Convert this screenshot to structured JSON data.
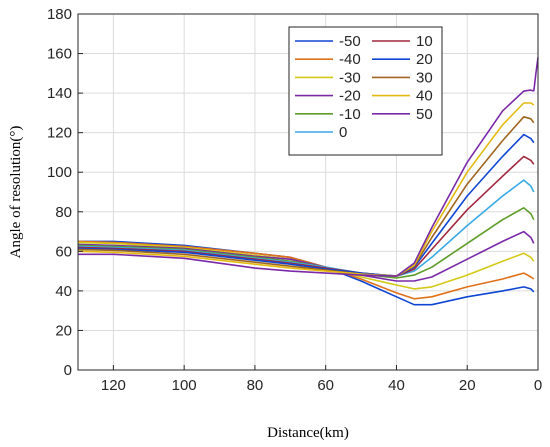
{
  "chart_data": {
    "type": "line",
    "title": "",
    "xlabel": "Distance(km)",
    "ylabel": "Angle of resolution(°)",
    "xlim": [
      130,
      0
    ],
    "ylim": [
      0,
      180
    ],
    "x_reversed": true,
    "xticks": [
      120,
      100,
      80,
      60,
      40,
      20,
      0
    ],
    "yticks": [
      0,
      20,
      40,
      60,
      80,
      100,
      120,
      140,
      160,
      180
    ],
    "grid": true,
    "legend_position": "top-right",
    "series": [
      {
        "name": "-50",
        "color": "#0e46d4",
        "points": [
          [
            130,
            65
          ],
          [
            120,
            65
          ],
          [
            100,
            63
          ],
          [
            80,
            59
          ],
          [
            70,
            57
          ],
          [
            60,
            52
          ],
          [
            50,
            45
          ],
          [
            40,
            37
          ],
          [
            35,
            33
          ],
          [
            30,
            33
          ],
          [
            20,
            37
          ],
          [
            10,
            40
          ],
          [
            4,
            42
          ],
          [
            2,
            41
          ],
          [
            1.2,
            39.5
          ]
        ]
      },
      {
        "name": "-40",
        "color": "#e0711a",
        "points": [
          [
            130,
            65
          ],
          [
            120,
            64.5
          ],
          [
            100,
            62.5
          ],
          [
            80,
            59
          ],
          [
            70,
            57
          ],
          [
            60,
            52
          ],
          [
            50,
            46
          ],
          [
            40,
            39
          ],
          [
            35,
            36
          ],
          [
            30,
            37
          ],
          [
            20,
            42
          ],
          [
            10,
            46
          ],
          [
            4,
            49
          ],
          [
            2,
            47
          ],
          [
            1.2,
            46
          ]
        ]
      },
      {
        "name": "-30",
        "color": "#d4c916",
        "points": [
          [
            130,
            64.5
          ],
          [
            120,
            64
          ],
          [
            100,
            62
          ],
          [
            80,
            58
          ],
          [
            70,
            56
          ],
          [
            60,
            52
          ],
          [
            50,
            47
          ],
          [
            40,
            43
          ],
          [
            35,
            41
          ],
          [
            30,
            42
          ],
          [
            20,
            48
          ],
          [
            10,
            55
          ],
          [
            4,
            59
          ],
          [
            2,
            57
          ],
          [
            1.2,
            55
          ]
        ]
      },
      {
        "name": "-20",
        "color": "#7a2aa8",
        "points": [
          [
            130,
            63.5
          ],
          [
            120,
            63
          ],
          [
            100,
            61.5
          ],
          [
            80,
            57.5
          ],
          [
            70,
            56
          ],
          [
            60,
            52
          ],
          [
            50,
            48
          ],
          [
            40,
            45
          ],
          [
            35,
            45
          ],
          [
            30,
            47
          ],
          [
            20,
            56
          ],
          [
            10,
            65
          ],
          [
            4,
            70
          ],
          [
            2,
            67
          ],
          [
            1.2,
            64
          ]
        ]
      },
      {
        "name": "-10",
        "color": "#5e9c28",
        "points": [
          [
            130,
            63
          ],
          [
            120,
            62.5
          ],
          [
            100,
            61
          ],
          [
            80,
            57
          ],
          [
            70,
            55
          ],
          [
            60,
            52
          ],
          [
            50,
            48.5
          ],
          [
            40,
            46.5
          ],
          [
            35,
            48
          ],
          [
            30,
            52
          ],
          [
            20,
            64
          ],
          [
            10,
            76
          ],
          [
            4,
            82
          ],
          [
            2,
            79
          ],
          [
            1.2,
            76
          ]
        ]
      },
      {
        "name": "0",
        "color": "#3aa9e6",
        "points": [
          [
            130,
            62.5
          ],
          [
            120,
            62
          ],
          [
            100,
            60.5
          ],
          [
            80,
            56.5
          ],
          [
            70,
            54.5
          ],
          [
            60,
            52
          ],
          [
            50,
            49
          ],
          [
            40,
            47.5
          ],
          [
            35,
            50
          ],
          [
            30,
            57
          ],
          [
            20,
            73
          ],
          [
            10,
            88
          ],
          [
            4,
            96
          ],
          [
            2,
            93
          ],
          [
            1.2,
            90
          ]
        ]
      },
      {
        "name": "10",
        "color": "#a2283f",
        "points": [
          [
            130,
            62
          ],
          [
            120,
            61.5
          ],
          [
            100,
            60
          ],
          [
            80,
            56
          ],
          [
            70,
            54
          ],
          [
            60,
            51.5
          ],
          [
            50,
            49
          ],
          [
            40,
            47.5
          ],
          [
            35,
            51
          ],
          [
            30,
            61
          ],
          [
            20,
            81
          ],
          [
            10,
            98
          ],
          [
            4,
            108
          ],
          [
            2,
            106
          ],
          [
            1.2,
            104
          ]
        ]
      },
      {
        "name": "20",
        "color": "#0e46d4",
        "points": [
          [
            130,
            61.5
          ],
          [
            120,
            61
          ],
          [
            100,
            59.5
          ],
          [
            80,
            55.5
          ],
          [
            70,
            53.5
          ],
          [
            60,
            51
          ],
          [
            50,
            49
          ],
          [
            40,
            47.5
          ],
          [
            35,
            52
          ],
          [
            30,
            64
          ],
          [
            20,
            88
          ],
          [
            10,
            108
          ],
          [
            4,
            119
          ],
          [
            2,
            117
          ],
          [
            1.2,
            115
          ]
        ]
      },
      {
        "name": "30",
        "color": "#a0651f",
        "points": [
          [
            130,
            61
          ],
          [
            120,
            60.5
          ],
          [
            100,
            58.5
          ],
          [
            80,
            54.5
          ],
          [
            70,
            52.5
          ],
          [
            60,
            50.5
          ],
          [
            50,
            48.5
          ],
          [
            40,
            47.5
          ],
          [
            35,
            52.5
          ],
          [
            30,
            67
          ],
          [
            20,
            94
          ],
          [
            10,
            116
          ],
          [
            4,
            128
          ],
          [
            2,
            127
          ],
          [
            1.2,
            125
          ]
        ]
      },
      {
        "name": "40",
        "color": "#e3ba12",
        "points": [
          [
            130,
            60
          ],
          [
            120,
            59.5
          ],
          [
            100,
            57.5
          ],
          [
            80,
            53.5
          ],
          [
            70,
            51.5
          ],
          [
            60,
            50
          ],
          [
            50,
            48.5
          ],
          [
            40,
            47.5
          ],
          [
            35,
            53
          ],
          [
            30,
            70
          ],
          [
            20,
            100
          ],
          [
            10,
            124
          ],
          [
            4,
            135
          ],
          [
            2,
            135
          ],
          [
            1.2,
            134
          ]
        ]
      },
      {
        "name": "50",
        "color": "#7a2aa8",
        "points": [
          [
            130,
            58.5
          ],
          [
            120,
            58.5
          ],
          [
            100,
            56.5
          ],
          [
            80,
            51.5
          ],
          [
            70,
            50
          ],
          [
            60,
            49
          ],
          [
            50,
            48
          ],
          [
            40,
            47.5
          ],
          [
            35,
            54
          ],
          [
            30,
            72
          ],
          [
            20,
            105
          ],
          [
            10,
            131
          ],
          [
            4,
            141
          ],
          [
            2,
            141.5
          ],
          [
            1.2,
            141
          ]
        ]
      }
    ],
    "edge_spike": {
      "color": "#7a2aa8",
      "points": [
        [
          1.2,
          141
        ],
        [
          0.6,
          150
        ],
        [
          0,
          158
        ]
      ]
    }
  }
}
